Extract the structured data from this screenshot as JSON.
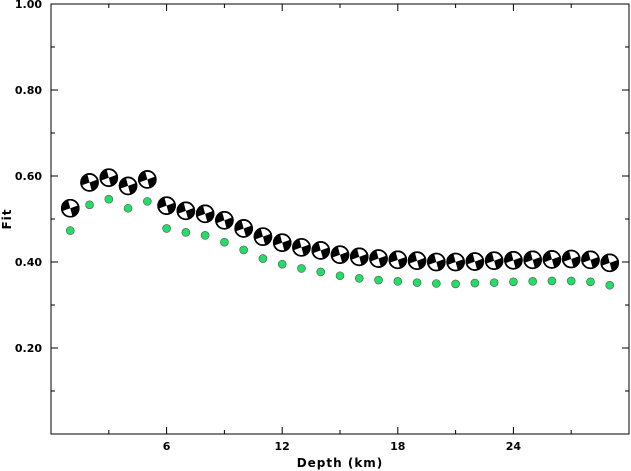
{
  "chart_data": {
    "type": "scatter",
    "title": "",
    "xlabel": "Depth (km)",
    "ylabel": "Fit",
    "xlim": [
      0.0,
      30.0
    ],
    "ylim": [
      0.0,
      1.0
    ],
    "xticks": [
      6,
      12,
      18,
      24
    ],
    "yticks": [
      0.2,
      0.4,
      0.6,
      0.8,
      1.0
    ],
    "ytick_labels": [
      "0.20",
      "0.40",
      "0.60",
      "0.80",
      "1.00"
    ],
    "grid": false,
    "series": [
      {
        "marker": "focal-mechanism",
        "color": "#000000",
        "points": [
          {
            "x": 1,
            "y": 0.525,
            "pole": "upper-left"
          },
          {
            "x": 2,
            "y": 0.585,
            "pole": "upper-left"
          },
          {
            "x": 3,
            "y": 0.596,
            "pole": "upper-left"
          },
          {
            "x": 4,
            "y": 0.577,
            "pole": "upper-left"
          },
          {
            "x": 5,
            "y": 0.592,
            "pole": "upper-left"
          },
          {
            "x": 6,
            "y": 0.531,
            "pole": "upper-left"
          },
          {
            "x": 7,
            "y": 0.519,
            "pole": "upper-left"
          },
          {
            "x": 8,
            "y": 0.512,
            "pole": "upper-left"
          },
          {
            "x": 9,
            "y": 0.497,
            "pole": "upper-left"
          },
          {
            "x": 10,
            "y": 0.478,
            "pole": "upper-left"
          },
          {
            "x": 11,
            "y": 0.459,
            "pole": "upper-left"
          },
          {
            "x": 12,
            "y": 0.445,
            "pole": "upper-left"
          },
          {
            "x": 13,
            "y": 0.434,
            "pole": "upper-left"
          },
          {
            "x": 14,
            "y": 0.427,
            "pole": "upper-left"
          },
          {
            "x": 15,
            "y": 0.417,
            "pole": "upper-left"
          },
          {
            "x": 16,
            "y": 0.412,
            "pole": "upper-left"
          },
          {
            "x": 17,
            "y": 0.408,
            "pole": "upper-left"
          },
          {
            "x": 18,
            "y": 0.405,
            "pole": "upper-left"
          },
          {
            "x": 19,
            "y": 0.403,
            "pole": "upper-left"
          },
          {
            "x": 20,
            "y": 0.4,
            "pole": "upper-left"
          },
          {
            "x": 21,
            "y": 0.4,
            "pole": "upper-left"
          },
          {
            "x": 22,
            "y": 0.401,
            "pole": "upper-left"
          },
          {
            "x": 23,
            "y": 0.403,
            "pole": "upper-left"
          },
          {
            "x": 24,
            "y": 0.404,
            "pole": "upper-left"
          },
          {
            "x": 25,
            "y": 0.405,
            "pole": "upper-left"
          },
          {
            "x": 26,
            "y": 0.406,
            "pole": "upper-left"
          },
          {
            "x": 27,
            "y": 0.407,
            "pole": "upper-left"
          },
          {
            "x": 28,
            "y": 0.405,
            "pole": "upper-left"
          },
          {
            "x": 29,
            "y": 0.398,
            "pole": "upper-left"
          }
        ]
      },
      {
        "marker": "dot",
        "color": "#22dd66",
        "points": [
          {
            "x": 1,
            "y": 0.473
          },
          {
            "x": 2,
            "y": 0.533
          },
          {
            "x": 3,
            "y": 0.546
          },
          {
            "x": 4,
            "y": 0.525
          },
          {
            "x": 5,
            "y": 0.541
          },
          {
            "x": 6,
            "y": 0.478
          },
          {
            "x": 7,
            "y": 0.469
          },
          {
            "x": 8,
            "y": 0.462
          },
          {
            "x": 9,
            "y": 0.446
          },
          {
            "x": 10,
            "y": 0.428
          },
          {
            "x": 11,
            "y": 0.408
          },
          {
            "x": 12,
            "y": 0.395
          },
          {
            "x": 13,
            "y": 0.385
          },
          {
            "x": 14,
            "y": 0.377
          },
          {
            "x": 15,
            "y": 0.368
          },
          {
            "x": 16,
            "y": 0.362
          },
          {
            "x": 17,
            "y": 0.358
          },
          {
            "x": 18,
            "y": 0.355
          },
          {
            "x": 19,
            "y": 0.352
          },
          {
            "x": 20,
            "y": 0.35
          },
          {
            "x": 21,
            "y": 0.349
          },
          {
            "x": 22,
            "y": 0.351
          },
          {
            "x": 23,
            "y": 0.352
          },
          {
            "x": 24,
            "y": 0.354
          },
          {
            "x": 25,
            "y": 0.355
          },
          {
            "x": 26,
            "y": 0.356
          },
          {
            "x": 27,
            "y": 0.356
          },
          {
            "x": 28,
            "y": 0.354
          },
          {
            "x": 29,
            "y": 0.346
          }
        ]
      }
    ]
  }
}
